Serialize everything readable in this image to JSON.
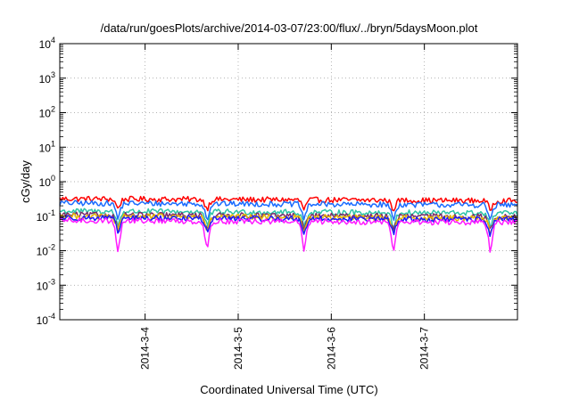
{
  "chart_data": {
    "type": "line",
    "title": "/data/run/goesPlots/archive/2014-03-07/23:00/flux/../bryn/5daysMoon.plot",
    "xlabel": "Coordinated Universal Time (UTC)",
    "ylabel": "cGy/day",
    "y_scale": "log",
    "ylim_exponents": [
      -4,
      4
    ],
    "y_tick_base": "10",
    "y_tick_exponents": [
      "-4",
      "-3",
      "-2",
      "-1",
      "0",
      "1",
      "2",
      "3",
      "4"
    ],
    "xlim": [
      "2014-03-03 02:00",
      "2014-03-08 00:00"
    ],
    "x_ticks": [
      "2014-3-4",
      "2014-3-5",
      "2014-3-6",
      "2014-3-7"
    ],
    "grid": true,
    "legend": "none",
    "dip_times": [
      "2014-03-03 17:00",
      "2014-03-04 16:00",
      "2014-03-05 17:00",
      "2014-03-06 16:00",
      "2014-03-07 17:00"
    ],
    "series": [
      {
        "color": "#ff0000",
        "baseline": 0.32,
        "dip_min": 0.16
      },
      {
        "color": "#1a6cff",
        "baseline": 0.24,
        "dip_min": 0.08
      },
      {
        "color": "#2ec4a8",
        "baseline": 0.14,
        "dip_min": 0.05
      },
      {
        "color": "#7a2a6a",
        "baseline": 0.11,
        "dip_min": 0.04
      },
      {
        "color": "#e6b800",
        "baseline": 0.1,
        "dip_min": 0.035
      },
      {
        "color": "#1a1aff",
        "baseline": 0.09,
        "dip_min": 0.03
      },
      {
        "color": "#ff1aff",
        "baseline": 0.075,
        "dip_min": 0.009
      }
    ]
  }
}
